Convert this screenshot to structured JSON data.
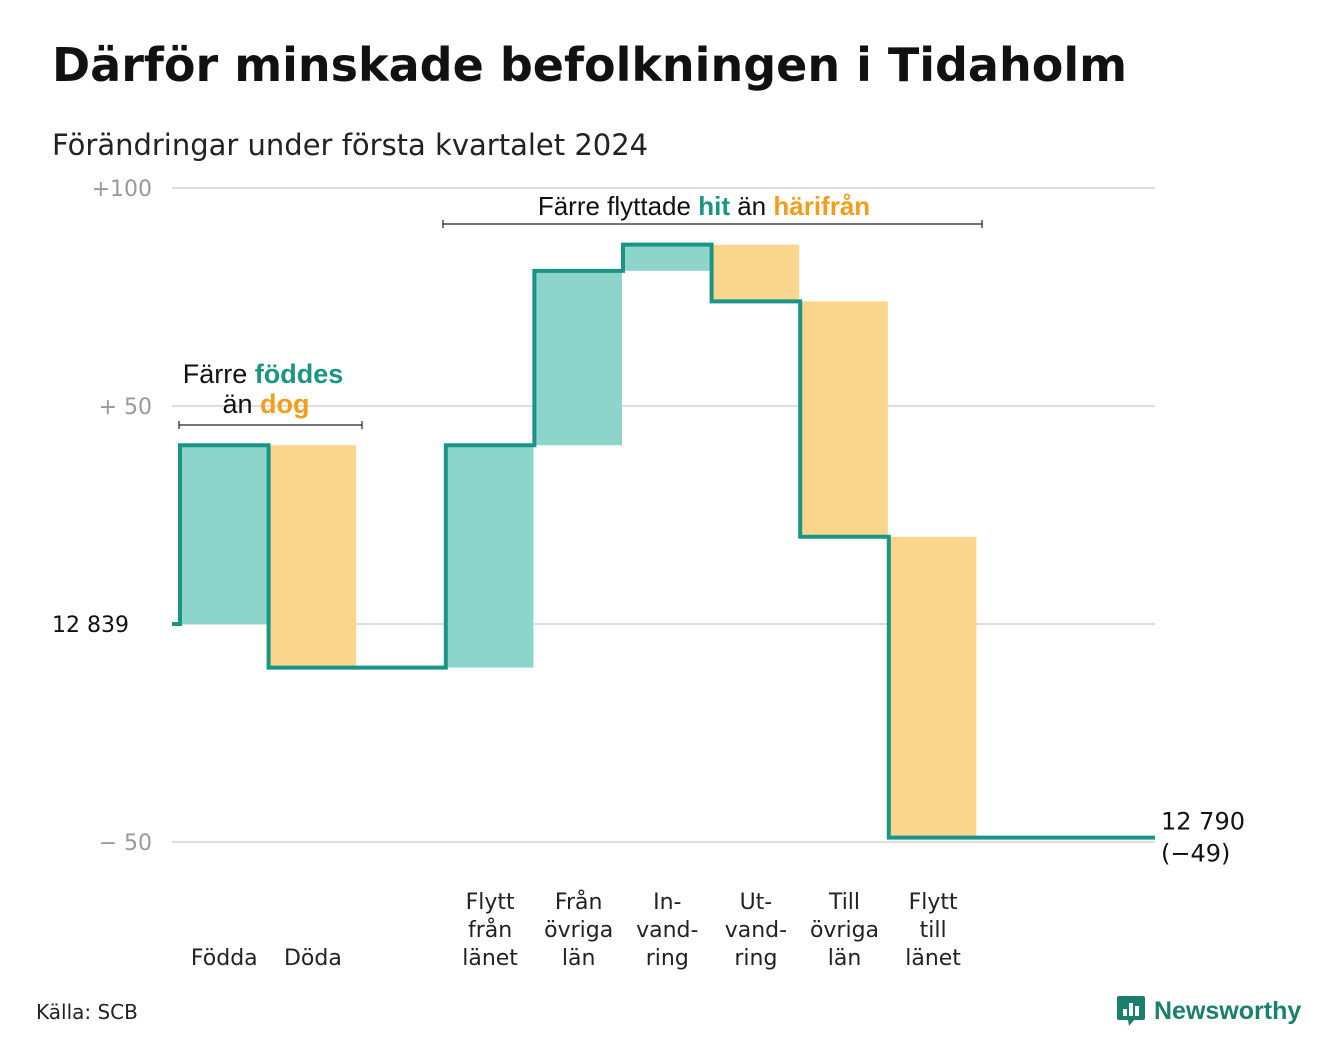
{
  "title": "Därför minskade befolkningen i Tidaholm",
  "subtitle": "Förändringar under första kvartalet 2024",
  "source": "Källa: SCB",
  "brand": "Newsworthy",
  "colors": {
    "positive_fill": "#8dd5cb",
    "negative_fill": "#fad58c",
    "line": "#1a9484",
    "teal_text": "#1a9484",
    "orange_text": "#f29e1b",
    "grid": "#dddddd",
    "tick": "#999999"
  },
  "annotations": {
    "group1": {
      "prefix": "Färre ",
      "hl1": "föddes",
      "mid": "än ",
      "hl2": "dog"
    },
    "group2": {
      "prefix": "Färre flyttade ",
      "hl1": "hit",
      "mid": " än ",
      "hl2": "härifrån"
    }
  },
  "chart_data": {
    "type": "waterfall",
    "start_value": 12839,
    "start_label": "12  839",
    "end_label": "12 790",
    "end_change": "(−49)",
    "yticks": [
      {
        "value": 100,
        "label": "+100"
      },
      {
        "value": 50,
        "label": "+  50"
      },
      {
        "value": -50,
        "label": "−  50"
      }
    ],
    "ylim": [
      -50,
      100
    ],
    "categories": [
      {
        "label": [
          "Födda"
        ],
        "value": 41
      },
      {
        "label": [
          "Döda"
        ],
        "value": -51
      },
      {
        "label": [],
        "value": 0
      },
      {
        "label": [
          "Flytt",
          "från",
          "länet"
        ],
        "value": 51
      },
      {
        "label": [
          "Från",
          "övriga",
          "län"
        ],
        "value": 40
      },
      {
        "label": [
          "In-",
          "vand-",
          "ring"
        ],
        "value": 6
      },
      {
        "label": [
          "Ut-",
          "vand-",
          "ring"
        ],
        "value": -13
      },
      {
        "label": [
          "Till",
          "övriga",
          "län"
        ],
        "value": -54
      },
      {
        "label": [
          "Flytt",
          "till",
          "länet"
        ],
        "value": -69
      }
    ]
  }
}
